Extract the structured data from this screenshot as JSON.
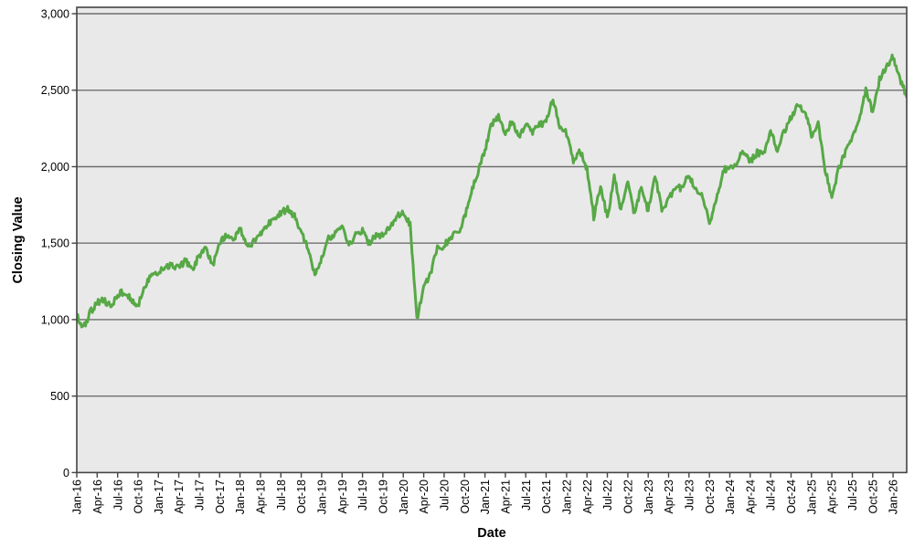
{
  "chart_data": {
    "type": "line",
    "title": "",
    "xlabel": "Date",
    "ylabel": "Closing Value",
    "legend": "none",
    "grid": "horizontal",
    "ylim": [
      0,
      3042
    ],
    "y_ticks": [
      0,
      500,
      1000,
      1500,
      2000,
      2500,
      3000
    ],
    "y_tick_labels": [
      "0",
      "500",
      "1,000",
      "1,500",
      "2,000",
      "2,500",
      "3,000"
    ],
    "xlim_months_from_start": [
      0,
      122
    ],
    "x_tick_step_months": 3,
    "x_tick_labels": [
      "Jan-16",
      "Apr-16",
      "Jul-16",
      "Oct-16",
      "Jan-17",
      "Apr-17",
      "Jul-17",
      "Oct-17",
      "Jan-18",
      "Apr-18",
      "Jul-18",
      "Oct-18",
      "Jan-19",
      "Apr-19",
      "Jul-19",
      "Oct-19",
      "Jan-20",
      "Apr-20",
      "Jul-20",
      "Oct-20",
      "Jan-21",
      "Apr-21",
      "Jul-21",
      "Oct-21",
      "Jan-22",
      "Apr-22",
      "Jul-22",
      "Oct-22",
      "Jan-23",
      "Apr-23",
      "Jul-23",
      "Oct-23",
      "Jan-24",
      "Apr-24",
      "Jul-24",
      "Oct-24",
      "Jan-25",
      "Apr-25",
      "Jul-25",
      "Oct-25",
      "Jan-26"
    ],
    "series": [
      {
        "name": "Closing Value",
        "color": "#57a846",
        "x_months_start_label": "Jan-16",
        "x_months_end_label": "Mar-26",
        "monthly_values": [
          1030,
          945,
          1050,
          1110,
          1125,
          1085,
          1160,
          1185,
          1130,
          1090,
          1220,
          1290,
          1310,
          1340,
          1355,
          1340,
          1385,
          1335,
          1415,
          1460,
          1355,
          1505,
          1555,
          1525,
          1595,
          1470,
          1510,
          1565,
          1620,
          1645,
          1695,
          1725,
          1680,
          1565,
          1465,
          1290,
          1405,
          1535,
          1565,
          1610,
          1480,
          1555,
          1580,
          1500,
          1555,
          1550,
          1600,
          1670,
          1700,
          1620,
          1000,
          1220,
          1300,
          1470,
          1480,
          1545,
          1560,
          1670,
          1840,
          1960,
          2110,
          2280,
          2330,
          2210,
          2300,
          2180,
          2290,
          2230,
          2270,
          2300,
          2450,
          2265,
          2220,
          2030,
          2100,
          1990,
          1670,
          1870,
          1670,
          1930,
          1720,
          1890,
          1690,
          1870,
          1710,
          1950,
          1725,
          1785,
          1870,
          1855,
          1950,
          1840,
          1800,
          1635,
          1770,
          1975,
          2000,
          2025,
          2110,
          2030,
          2090,
          2090,
          2230,
          2110,
          2230,
          2320,
          2410,
          2360,
          2210,
          2280,
          1985,
          1790,
          1985,
          2100,
          2180,
          2290,
          2500,
          2360,
          2570,
          2655,
          2720,
          2580,
          2455
        ]
      }
    ],
    "colors": {
      "outer_bg": "#ffffff",
      "plot_bg": "#e9e9e9",
      "gridline": "#6e6e6e",
      "plot_border": "#444444",
      "tick": "#444444",
      "text": "#000000",
      "line": "#57a846"
    }
  }
}
